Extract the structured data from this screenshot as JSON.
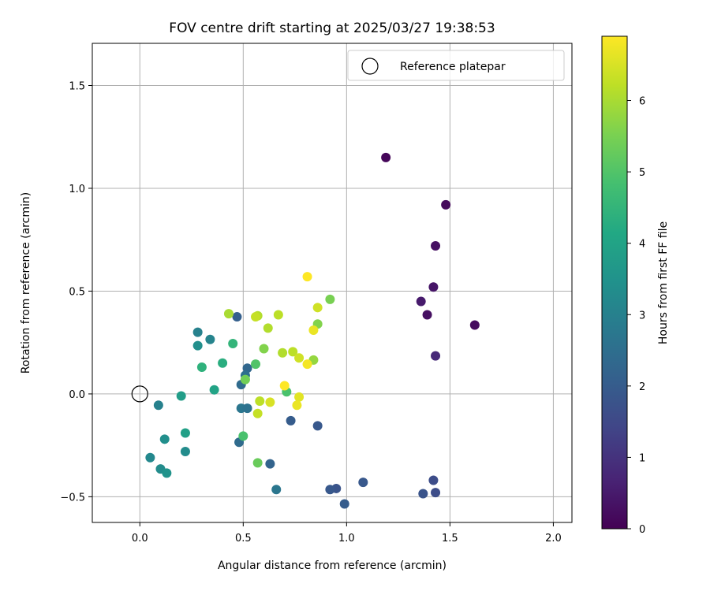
{
  "chart_data": {
    "type": "scatter",
    "title": "FOV centre drift starting at 2025/03/27 19:38:53",
    "xlabel": "Angular distance from reference (arcmin)",
    "ylabel": "Rotation from reference (arcmin)",
    "xlim": [
      -0.23,
      2.09
    ],
    "ylim": [
      -0.625,
      1.705
    ],
    "xticks": [
      0.0,
      0.5,
      1.0,
      1.5,
      2.0
    ],
    "xtick_labels": [
      "0.0",
      "0.5",
      "1.0",
      "1.5",
      "2.0"
    ],
    "yticks": [
      -0.5,
      0.0,
      0.5,
      1.0,
      1.5
    ],
    "ytick_labels": [
      "−0.5",
      "0.0",
      "0.5",
      "1.0",
      "1.5"
    ],
    "grid": true,
    "legend": {
      "position": "top-right",
      "entries": [
        "Reference platepar"
      ]
    },
    "reference_point": {
      "label": "Reference platepar",
      "x": 0.0,
      "y": 0.0
    },
    "colorbar": {
      "label": "Hours from first FF file",
      "colormap": "viridis",
      "range": [
        0,
        6.9
      ],
      "ticks": [
        0,
        1,
        2,
        3,
        4,
        5,
        6
      ],
      "tick_labels": [
        "0",
        "1",
        "2",
        "3",
        "4",
        "5",
        "6"
      ]
    },
    "points": [
      {
        "x": 1.19,
        "y": 1.15,
        "c": 0.1
      },
      {
        "x": 1.48,
        "y": 0.92,
        "c": 0.15
      },
      {
        "x": 1.43,
        "y": 0.72,
        "c": 0.3
      },
      {
        "x": 1.42,
        "y": 0.52,
        "c": 0.4
      },
      {
        "x": 1.36,
        "y": 0.45,
        "c": 0.5
      },
      {
        "x": 1.39,
        "y": 0.385,
        "c": 0.3
      },
      {
        "x": 1.62,
        "y": 0.335,
        "c": 0.2
      },
      {
        "x": 1.43,
        "y": 0.185,
        "c": 0.8
      },
      {
        "x": 1.42,
        "y": -0.42,
        "c": 1.6
      },
      {
        "x": 1.43,
        "y": -0.48,
        "c": 1.6
      },
      {
        "x": 1.37,
        "y": -0.485,
        "c": 1.8
      },
      {
        "x": 1.08,
        "y": -0.43,
        "c": 1.9
      },
      {
        "x": 0.99,
        "y": -0.535,
        "c": 2.0
      },
      {
        "x": 0.95,
        "y": -0.46,
        "c": 1.8
      },
      {
        "x": 0.92,
        "y": -0.465,
        "c": 1.9
      },
      {
        "x": 0.86,
        "y": -0.155,
        "c": 1.9
      },
      {
        "x": 0.73,
        "y": -0.13,
        "c": 2.0
      },
      {
        "x": 0.63,
        "y": -0.34,
        "c": 2.2
      },
      {
        "x": 0.66,
        "y": -0.465,
        "c": 2.7
      },
      {
        "x": 0.47,
        "y": 0.375,
        "c": 2.1
      },
      {
        "x": 0.52,
        "y": 0.125,
        "c": 2.3
      },
      {
        "x": 0.51,
        "y": 0.09,
        "c": 2.5
      },
      {
        "x": 0.49,
        "y": 0.045,
        "c": 2.4
      },
      {
        "x": 0.49,
        "y": -0.07,
        "c": 2.7
      },
      {
        "x": 0.52,
        "y": -0.07,
        "c": 2.6
      },
      {
        "x": 0.48,
        "y": -0.235,
        "c": 2.4
      },
      {
        "x": 0.28,
        "y": 0.3,
        "c": 3.0
      },
      {
        "x": 0.34,
        "y": 0.265,
        "c": 3.1
      },
      {
        "x": 0.28,
        "y": 0.235,
        "c": 3.4
      },
      {
        "x": 0.09,
        "y": -0.055,
        "c": 3.0
      },
      {
        "x": 0.05,
        "y": -0.31,
        "c": 3.2
      },
      {
        "x": 0.12,
        "y": -0.22,
        "c": 3.4
      },
      {
        "x": 0.1,
        "y": -0.365,
        "c": 3.3
      },
      {
        "x": 0.13,
        "y": -0.385,
        "c": 3.5
      },
      {
        "x": 0.2,
        "y": -0.01,
        "c": 3.8
      },
      {
        "x": 0.22,
        "y": -0.28,
        "c": 3.3
      },
      {
        "x": 0.22,
        "y": -0.19,
        "c": 3.9
      },
      {
        "x": 0.36,
        "y": 0.02,
        "c": 4.0
      },
      {
        "x": 0.3,
        "y": 0.13,
        "c": 4.4
      },
      {
        "x": 0.4,
        "y": 0.15,
        "c": 4.3
      },
      {
        "x": 0.45,
        "y": 0.245,
        "c": 4.5
      },
      {
        "x": 0.5,
        "y": -0.205,
        "c": 4.9
      },
      {
        "x": 0.56,
        "y": 0.145,
        "c": 5.0
      },
      {
        "x": 0.57,
        "y": -0.335,
        "c": 5.3
      },
      {
        "x": 0.71,
        "y": 0.01,
        "c": 4.9
      },
      {
        "x": 0.51,
        "y": 0.07,
        "c": 5.4
      },
      {
        "x": 0.6,
        "y": 0.22,
        "c": 5.6
      },
      {
        "x": 0.86,
        "y": 0.34,
        "c": 5.6
      },
      {
        "x": 0.84,
        "y": 0.165,
        "c": 5.8
      },
      {
        "x": 0.92,
        "y": 0.46,
        "c": 5.5
      },
      {
        "x": 0.43,
        "y": 0.39,
        "c": 6.0
      },
      {
        "x": 0.57,
        "y": 0.38,
        "c": 6.1
      },
      {
        "x": 0.56,
        "y": 0.375,
        "c": 6.3
      },
      {
        "x": 0.62,
        "y": 0.32,
        "c": 6.1
      },
      {
        "x": 0.67,
        "y": 0.385,
        "c": 6.2
      },
      {
        "x": 0.58,
        "y": -0.035,
        "c": 6.2
      },
      {
        "x": 0.57,
        "y": -0.095,
        "c": 6.3
      },
      {
        "x": 0.63,
        "y": -0.04,
        "c": 6.5
      },
      {
        "x": 0.69,
        "y": 0.2,
        "c": 6.1
      },
      {
        "x": 0.74,
        "y": 0.205,
        "c": 6.2
      },
      {
        "x": 0.86,
        "y": 0.42,
        "c": 6.4
      },
      {
        "x": 0.84,
        "y": 0.31,
        "c": 6.7
      },
      {
        "x": 0.77,
        "y": 0.175,
        "c": 6.4
      },
      {
        "x": 0.81,
        "y": 0.145,
        "c": 6.8
      },
      {
        "x": 0.77,
        "y": -0.015,
        "c": 6.6
      },
      {
        "x": 0.76,
        "y": -0.055,
        "c": 6.7
      },
      {
        "x": 0.7,
        "y": 0.04,
        "c": 6.9
      },
      {
        "x": 0.81,
        "y": 0.57,
        "c": 6.9
      }
    ]
  }
}
